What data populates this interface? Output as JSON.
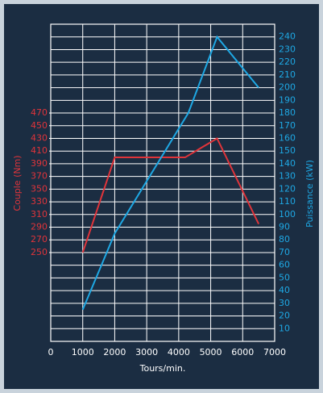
{
  "chart_data": {
    "type": "line",
    "xlabel": "Tours/min.",
    "ylabel": "Couple (Nm)",
    "y2label": "Puissance (kW)",
    "xlim": [
      0,
      7000
    ],
    "xticks": [
      0,
      1000,
      2000,
      3000,
      4000,
      5000,
      6000,
      7000
    ],
    "ylim": [
      110,
      610
    ],
    "yticks": [
      250,
      270,
      290,
      310,
      330,
      350,
      370,
      390,
      410,
      430,
      450,
      470
    ],
    "y2lim": [
      0,
      250
    ],
    "y2ticks": [
      10,
      20,
      30,
      40,
      50,
      60,
      70,
      80,
      90,
      100,
      110,
      120,
      130,
      140,
      150,
      160,
      170,
      180,
      190,
      200,
      210,
      220,
      230,
      240
    ],
    "grid": true,
    "series": [
      {
        "name": "Couple (Nm)",
        "color": "#e0343a",
        "x": [
          1000,
          2000,
          4200,
          5200,
          6500
        ],
        "values": [
          250,
          400,
          400,
          430,
          295
        ]
      },
      {
        "name": "Puissance (kW)",
        "color": "#1ea8e4",
        "axis": "y2",
        "x": [
          1000,
          2000,
          4300,
          5200,
          6500
        ],
        "values": [
          25,
          85,
          180,
          240,
          200
        ]
      }
    ]
  }
}
